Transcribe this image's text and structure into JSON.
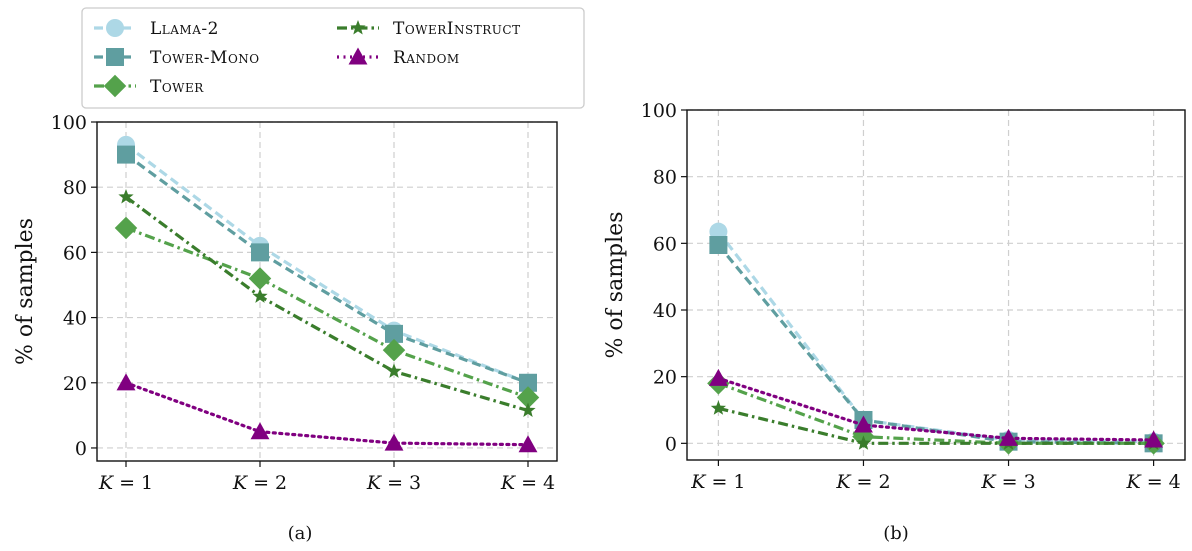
{
  "legend": {
    "entries": [
      {
        "label": "Llama-2",
        "color": "#add8e6",
        "marker": "circle",
        "dash": "dashed"
      },
      {
        "label": "Tower-Mono",
        "color": "#5f9ea0",
        "marker": "square",
        "dash": "dashed"
      },
      {
        "label": "Tower",
        "color": "#54a24b",
        "marker": "diamond",
        "dash": "dashdot"
      },
      {
        "label": "TowerInstruct",
        "color": "#3a7d2c",
        "marker": "star",
        "dash": "dashdot"
      },
      {
        "label": "Random",
        "color": "#800080",
        "marker": "triangle",
        "dash": "dotted"
      }
    ]
  },
  "chart_data": [
    {
      "type": "line",
      "caption": "(a)",
      "categories": [
        "K = 1",
        "K = 2",
        "K = 3",
        "K = 4"
      ],
      "ylabel": "% of samples",
      "ylim": [
        -4,
        100
      ],
      "yticks": [
        0,
        20,
        40,
        60,
        80,
        100
      ],
      "grid": true,
      "legend_placement": "top-left, above plot",
      "series": [
        {
          "name": "Llama-2",
          "values": [
            93,
            62,
            36,
            20
          ]
        },
        {
          "name": "Tower-Mono",
          "values": [
            90,
            60,
            35,
            20
          ]
        },
        {
          "name": "Tower",
          "values": [
            67.5,
            52,
            30,
            15.5
          ]
        },
        {
          "name": "TowerInstruct",
          "values": [
            77,
            46.5,
            23.5,
            11.5
          ]
        },
        {
          "name": "Random",
          "values": [
            20,
            5,
            1.5,
            1
          ]
        }
      ]
    },
    {
      "type": "line",
      "caption": "(b)",
      "categories": [
        "K = 1",
        "K = 2",
        "K = 3",
        "K = 4"
      ],
      "ylabel": "% of samples",
      "ylim": [
        -5,
        100
      ],
      "yticks": [
        0,
        20,
        40,
        60,
        80,
        100
      ],
      "grid": true,
      "series": [
        {
          "name": "Llama-2",
          "values": [
            63.5,
            7,
            1,
            0.5
          ]
        },
        {
          "name": "Tower-Mono",
          "values": [
            59.5,
            7,
            0.5,
            0
          ]
        },
        {
          "name": "Tower",
          "values": [
            18,
            2,
            0,
            0
          ]
        },
        {
          "name": "TowerInstruct",
          "values": [
            10.5,
            0,
            0,
            0
          ]
        },
        {
          "name": "Random",
          "values": [
            19.5,
            5.5,
            1.5,
            1
          ]
        }
      ]
    }
  ]
}
